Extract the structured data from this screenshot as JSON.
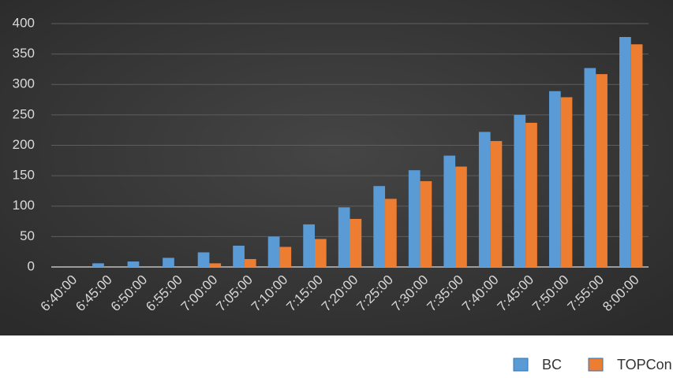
{
  "chart_data": {
    "type": "bar",
    "categories": [
      "6:40:00",
      "6:45:00",
      "6:50:00",
      "6:55:00",
      "7:00:00",
      "7:05:00",
      "7:10:00",
      "7:15:00",
      "7:20:00",
      "7:25:00",
      "7:30:00",
      "7:35:00",
      "7:40:00",
      "7:45:00",
      "7:50:00",
      "7:55:00",
      "8:00:00"
    ],
    "series": [
      {
        "name": "BC",
        "color": "#5b9bd5",
        "values": [
          0,
          6,
          9,
          15,
          24,
          35,
          50,
          70,
          98,
          133,
          159,
          183,
          222,
          250,
          289,
          327,
          378
        ]
      },
      {
        "name": "TOPCon",
        "color": "#ed7d31",
        "values": [
          0,
          0,
          0,
          0,
          6,
          13,
          33,
          46,
          79,
          112,
          141,
          165,
          207,
          237,
          279,
          317,
          366
        ]
      }
    ],
    "ylim": [
      0,
      400
    ],
    "yticks": [
      0,
      50,
      100,
      150,
      200,
      250,
      300,
      350,
      400
    ],
    "grid": true,
    "legend": "bottom-right"
  }
}
